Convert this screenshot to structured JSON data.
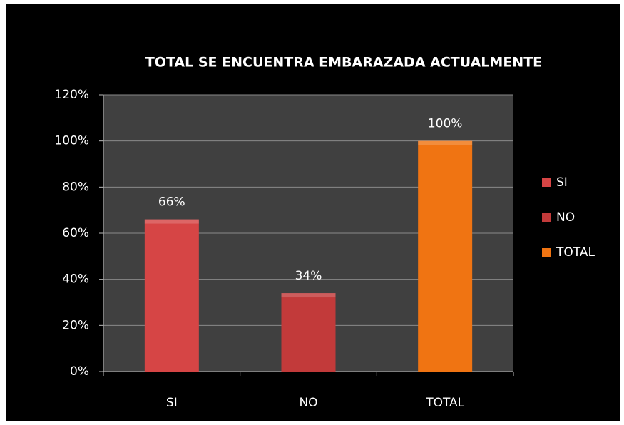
{
  "chart_data": {
    "type": "bar",
    "title": "TOTAL SE ENCUENTRA EMBARAZADA ACTUALMENTE",
    "categories": [
      "SI",
      "NO",
      "TOTAL"
    ],
    "values": [
      66,
      34,
      100
    ],
    "value_labels": [
      "66%",
      "34%",
      "100%"
    ],
    "colors": [
      "#d64545",
      "#c23a3a",
      "#f07412"
    ],
    "ylim": [
      0,
      120
    ],
    "yticks": [
      {
        "value": 0,
        "label": "0%"
      },
      {
        "value": 20,
        "label": "20%"
      },
      {
        "value": 40,
        "label": "40%"
      },
      {
        "value": 60,
        "label": "60%"
      },
      {
        "value": 80,
        "label": "80%"
      },
      {
        "value": 100,
        "label": "100%"
      },
      {
        "value": 120,
        "label": "120%"
      }
    ],
    "grid": true,
    "legend": "right"
  }
}
